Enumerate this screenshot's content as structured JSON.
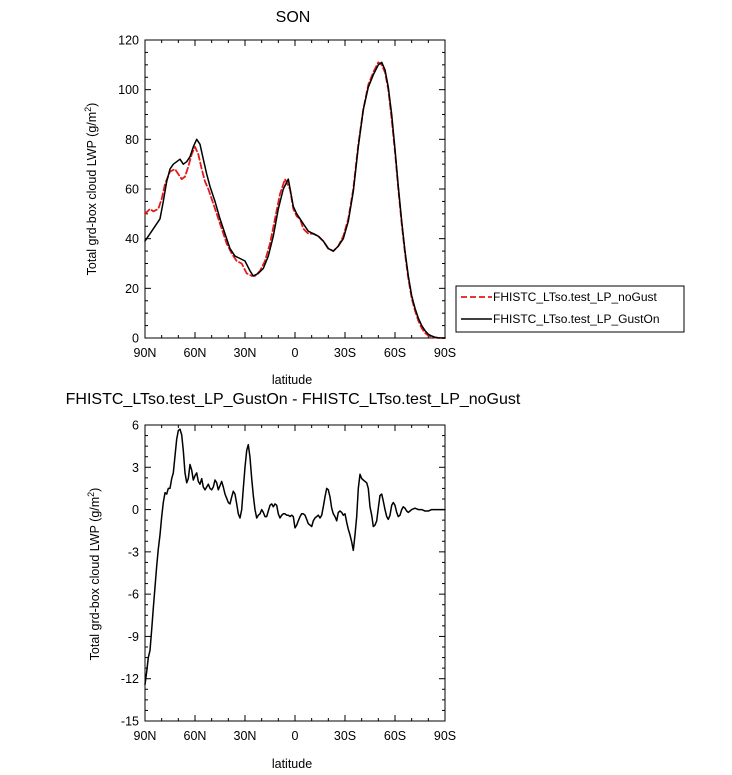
{
  "chart_data": [
    {
      "type": "line",
      "title": "SON",
      "xlabel": "latitude",
      "ylabel_main": "Total grd-box cloud LWP (g/m",
      "ylabel_sup": "2",
      "ylabel_tail": ")",
      "xlim": [
        90,
        -90
      ],
      "ylim": [
        0,
        120
      ],
      "xticks": [
        {
          "value": 90,
          "label": "90N"
        },
        {
          "value": 60,
          "label": "60N"
        },
        {
          "value": 30,
          "label": "30N"
        },
        {
          "value": 0,
          "label": "0"
        },
        {
          "value": -30,
          "label": "30S"
        },
        {
          "value": -60,
          "label": "60S"
        },
        {
          "value": -90,
          "label": "90S"
        }
      ],
      "yticks": [
        0,
        20,
        40,
        60,
        80,
        100,
        120
      ],
      "legend": {
        "placement": "outside-right"
      },
      "series": [
        {
          "name": "FHISTC_LTso.test_LP_noGust",
          "color": "#e41a1c",
          "dash": "dashed",
          "x": [
            90,
            87,
            85,
            82,
            80,
            78,
            75,
            72,
            70,
            68,
            66,
            64,
            62,
            60,
            58,
            56,
            54,
            52,
            50,
            47,
            44,
            41,
            38,
            35,
            32,
            29,
            26,
            24,
            21,
            18,
            15,
            12,
            9,
            6,
            3,
            1,
            -1,
            -3,
            -5,
            -8,
            -11,
            -14,
            -17,
            -20,
            -23,
            -26,
            -29,
            -32,
            -35,
            -38,
            -41,
            -44,
            -47,
            -50,
            -52,
            -54,
            -56,
            -58,
            -60,
            -62,
            -64,
            -66,
            -68,
            -70,
            -72,
            -74,
            -76,
            -78,
            -80,
            -82,
            -84,
            -86,
            -88,
            -90
          ],
          "y": [
            50,
            52,
            51,
            52,
            56,
            62,
            67,
            68,
            66,
            64,
            65,
            69,
            74,
            77,
            74,
            68,
            63,
            60,
            56,
            50,
            44,
            38,
            34,
            31,
            30,
            26,
            25,
            25,
            27,
            31,
            38,
            48,
            58,
            64,
            60,
            52,
            49,
            48,
            44,
            42,
            42,
            41,
            39,
            36,
            35,
            37,
            41,
            48,
            60,
            78,
            92,
            102,
            107,
            111,
            110,
            107,
            100,
            88,
            75,
            60,
            46,
            34,
            24,
            16,
            11,
            7,
            4,
            2,
            1,
            0.5,
            0.2,
            0,
            0,
            0
          ]
        },
        {
          "name": "FHISTC_LTso.test_LP_GustOn",
          "color": "#000000",
          "dash": "solid",
          "x": [
            90,
            87,
            84,
            81,
            79,
            77,
            75,
            73,
            71,
            69,
            67,
            65,
            63,
            61,
            59,
            57,
            55,
            53,
            51,
            48,
            45,
            42,
            39,
            36,
            33,
            30,
            27,
            25,
            22,
            19,
            16,
            13,
            10,
            7,
            4,
            1,
            -1,
            -3,
            -5,
            -8,
            -11,
            -14,
            -17,
            -20,
            -23,
            -26,
            -29,
            -32,
            -35,
            -38,
            -41,
            -44,
            -47,
            -50,
            -52,
            -54,
            -56,
            -58,
            -60,
            -62,
            -64,
            -66,
            -68,
            -70,
            -72,
            -74,
            -76,
            -78,
            -80,
            -82,
            -84,
            -86,
            -88,
            -90
          ],
          "y": [
            39,
            42,
            45,
            48,
            55,
            63,
            68,
            70,
            71,
            72,
            70,
            71,
            73,
            77,
            80,
            78,
            72,
            66,
            61,
            55,
            48,
            42,
            36,
            33,
            32,
            31,
            27,
            25,
            26,
            28,
            33,
            41,
            52,
            60,
            64,
            53,
            50,
            48,
            46,
            43,
            42,
            41,
            39,
            36,
            35,
            37,
            40,
            47,
            59,
            77,
            92,
            101,
            106,
            110,
            111,
            108,
            101,
            90,
            76,
            61,
            47,
            35,
            25,
            17,
            12,
            8,
            5,
            3,
            1.5,
            0.8,
            0.3,
            0.1,
            0,
            0
          ]
        }
      ]
    },
    {
      "type": "line",
      "title": "FHISTC_LTso.test_LP_GustOn - FHISTC_LTso.test_LP_noGust",
      "xlabel": "latitude",
      "ylabel_main": "Total grd-box cloud LWP (g/m",
      "ylabel_sup": "2",
      "ylabel_tail": ")",
      "xlim": [
        90,
        -90
      ],
      "ylim": [
        -15,
        6
      ],
      "xticks": [
        {
          "value": 90,
          "label": "90N"
        },
        {
          "value": 60,
          "label": "60N"
        },
        {
          "value": 30,
          "label": "30N"
        },
        {
          "value": 0,
          "label": "0"
        },
        {
          "value": -30,
          "label": "30S"
        },
        {
          "value": -60,
          "label": "60S"
        },
        {
          "value": -90,
          "label": "90S"
        }
      ],
      "yticks": [
        -15,
        -12,
        -9,
        -6,
        -3,
        0,
        3,
        6
      ],
      "series": [
        {
          "color": "#000000",
          "dash": "solid",
          "x": [
            90,
            89,
            88,
            87,
            86,
            85,
            84,
            83,
            82,
            81,
            80,
            79,
            78,
            77,
            76,
            75,
            74,
            73,
            72,
            71,
            70,
            69,
            68,
            67,
            66,
            65,
            64,
            63,
            62,
            61,
            60,
            59,
            58,
            57,
            56,
            55,
            54,
            53,
            52,
            51,
            50,
            49,
            48,
            47,
            46,
            45,
            44,
            43,
            42,
            41,
            40,
            39,
            38,
            37,
            36,
            35,
            34,
            33,
            32,
            31,
            30,
            29,
            28,
            27,
            26,
            25,
            24,
            23,
            22,
            21,
            20,
            19,
            18,
            17,
            16,
            15,
            14,
            13,
            12,
            11,
            10,
            9,
            8,
            7,
            6,
            5,
            4,
            3,
            2,
            1,
            0,
            -1,
            -2,
            -3,
            -4,
            -5,
            -6,
            -7,
            -8,
            -9,
            -10,
            -11,
            -12,
            -13,
            -14,
            -15,
            -16,
            -17,
            -18,
            -19,
            -20,
            -21,
            -22,
            -23,
            -24,
            -25,
            -26,
            -27,
            -28,
            -29,
            -30,
            -31,
            -32,
            -33,
            -34,
            -35,
            -36,
            -37,
            -38,
            -39,
            -40,
            -41,
            -42,
            -43,
            -44,
            -45,
            -46,
            -47,
            -48,
            -49,
            -50,
            -51,
            -52,
            -53,
            -54,
            -55,
            -56,
            -57,
            -58,
            -59,
            -60,
            -61,
            -62,
            -63,
            -64,
            -65,
            -66,
            -67,
            -68,
            -69,
            -70,
            -72,
            -74,
            -76,
            -78,
            -80,
            -82,
            -84,
            -86,
            -88,
            -90
          ],
          "y": [
            -12.4,
            -11.5,
            -10.5,
            -10,
            -8.5,
            -7,
            -5.5,
            -4,
            -2.8,
            -1.8,
            -0.5,
            0.5,
            1.2,
            1.1,
            1.5,
            1.5,
            2.2,
            2.6,
            3.8,
            5.0,
            5.6,
            5.7,
            5.3,
            4.2,
            2.6,
            1.9,
            2.2,
            3.2,
            2.8,
            2.1,
            2.4,
            2.6,
            2.0,
            1.8,
            2.2,
            1.6,
            1.4,
            1.6,
            1.8,
            1.5,
            1.4,
            1.6,
            2.1,
            1.9,
            1.4,
            1.7,
            2.0,
            1.6,
            1.1,
            0.8,
            0.5,
            0.4,
            0.9,
            1.3,
            1.1,
            0.4,
            -0.3,
            -0.6,
            0,
            1.5,
            3.0,
            4.2,
            4.6,
            3.7,
            2.2,
            1.0,
            0,
            -0.6,
            -0.4,
            -0.3,
            0,
            -0.2,
            -0.5,
            -0.5,
            -0.1,
            0.3,
            0.4,
            0.2,
            0.4,
            0.3,
            -0.3,
            -0.6,
            -0.4,
            -0.3,
            -0.3,
            -0.4,
            -0.4,
            -0.5,
            -0.4,
            -0.5,
            -1.3,
            -1.1,
            -0.8,
            -0.5,
            -0.3,
            -0.3,
            -0.4,
            -0.7,
            -1.0,
            -1.1,
            -1.2,
            -0.8,
            -0.6,
            -0.5,
            -0.4,
            -0.6,
            -0.4,
            0.2,
            0.9,
            1.5,
            1.4,
            0.9,
            0.1,
            -0.3,
            -0.5,
            -0.8,
            -0.2,
            -0.1,
            -0.2,
            -0.4,
            -0.3,
            -0.9,
            -1.4,
            -1.8,
            -2.3,
            -2.9,
            -1.8,
            -0.5,
            1.5,
            2.5,
            2.2,
            2.1,
            2.0,
            1.9,
            1.5,
            0.2,
            -0.4,
            -1.2,
            -1.1,
            -0.8,
            0.1,
            1.0,
            1.1,
            0.6,
            0,
            -0.5,
            -0.7,
            -0.4,
            0.3,
            0.5,
            0.3,
            -0.2,
            -0.5,
            -0.4,
            0,
            0.2,
            0.1,
            -0.1,
            -0.2,
            -0.1,
            0,
            0.1,
            0,
            0,
            -0.1,
            -0.1,
            0,
            0,
            0,
            0,
            0
          ]
        }
      ]
    }
  ]
}
